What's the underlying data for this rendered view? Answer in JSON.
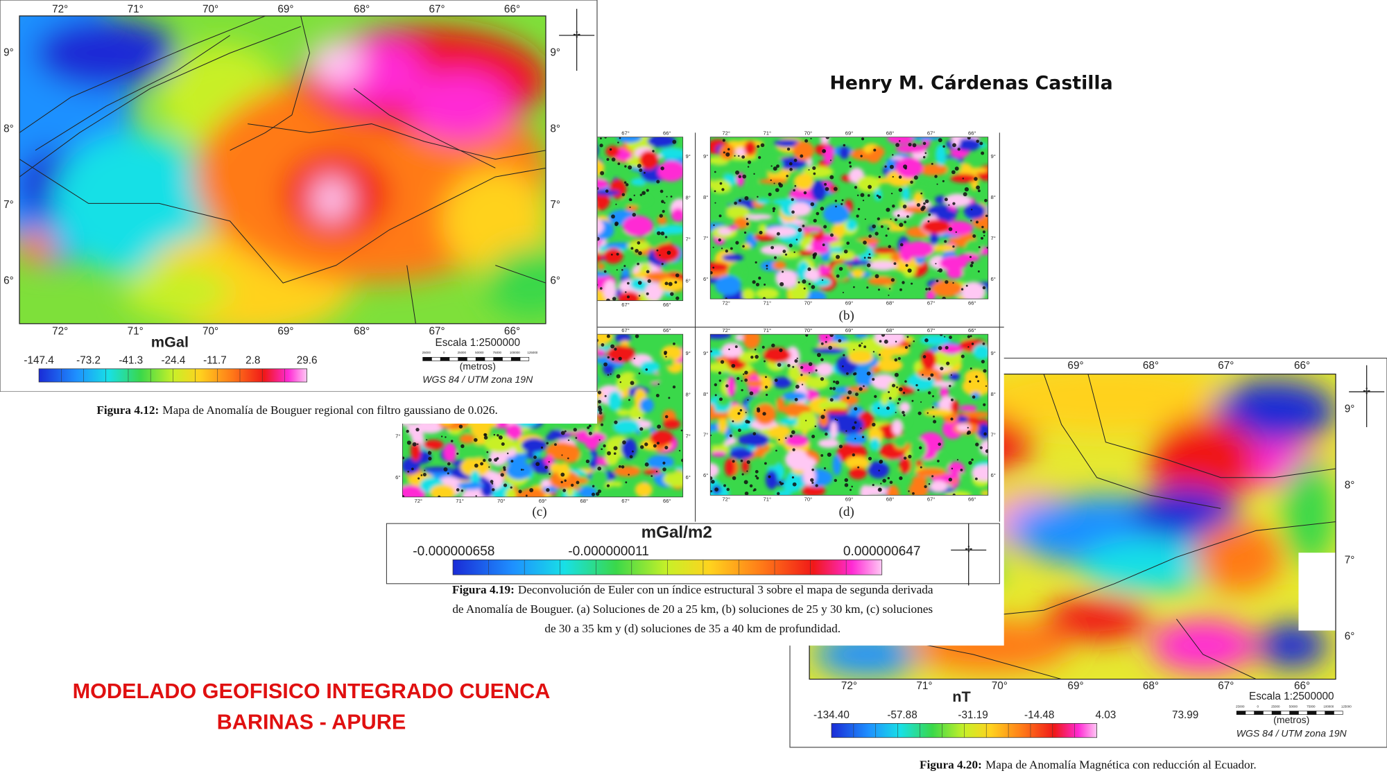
{
  "author": "Henry M. Cárdenas Castilla",
  "title": [
    "MODELADO GEOFISICO INTEGRADO CUENCA",
    "BARINAS - APURE"
  ],
  "figures": [
    {
      "lon_top": [
        "72°",
        "71°",
        "70°",
        "69°",
        "68°",
        "67°",
        "66°"
      ],
      "lon_bottom": [
        "72°",
        "71°",
        "70°",
        "69°",
        "68°",
        "67°",
        "66°"
      ],
      "lat_left": [
        "9°",
        "8°",
        "7°",
        "6°"
      ],
      "lat_right": [
        "9°",
        "8°",
        "7°",
        "6°"
      ],
      "unit": "mGal",
      "colorbar": [
        "-147.4",
        "-73.2",
        "-41.3",
        "-24.4",
        "-11.7",
        "2.8",
        "29.6"
      ],
      "scale": "Escala 1:2500000",
      "scale_ticks": [
        "25000",
        "0",
        "25000",
        "50000",
        "75000",
        "100000",
        "125000"
      ],
      "scale_unit": "(metros)",
      "datum": "WGS 84 / UTM zona 19N",
      "caption_label": "Figura 4.12:",
      "caption": "Mapa de Anomalía de Bouguer  regional con filtro gaussiano de 0.026."
    },
    {
      "panels": [
        "(b)",
        "(c)",
        "(d)"
      ],
      "panel_lon": [
        "72°",
        "71°",
        "70°",
        "69°",
        "68°",
        "67°",
        "66°"
      ],
      "panel_lat": [
        "9°",
        "8°",
        "7°",
        "6°"
      ],
      "unit": "mGal/m2",
      "colorbar": [
        "-0.000000658",
        "-0.000000011",
        "0.000000647"
      ],
      "caption_label": "Figura 4.19:",
      "caption_lines": [
        "Deconvolución de Euler con un índice estructural 3 sobre el mapa de segunda derivada",
        "de Anomalía de Bouguer. (a) Soluciones de 20 a 25 km, (b) soluciones de 25 y 30 km, (c) soluciones",
        "de 30 a 35 km y (d) soluciones de 35 a 40 km de profundidad."
      ]
    },
    {
      "lon_top": [
        "69°",
        "68°",
        "67°",
        "66°"
      ],
      "lon_bottom": [
        "72°",
        "71°",
        "70°",
        "69°",
        "68°",
        "67°",
        "66°"
      ],
      "lat_right": [
        "9°",
        "8°",
        "7°",
        "6°"
      ],
      "unit": "nT",
      "colorbar": [
        "-134.40",
        "-57.88",
        "-31.19",
        "-14.48",
        "4.03",
        "73.99"
      ],
      "scale": "Escala 1:2500000",
      "scale_ticks": [
        "25000",
        "0",
        "25000",
        "50000",
        "75000",
        "100000",
        "125000"
      ],
      "scale_unit": "(metros)",
      "datum": "WGS 84 / UTM zona 19N",
      "caption_label": "Figura 4.20:",
      "caption": "Mapa de Anomalía Magnética con reducción al Ecuador."
    }
  ]
}
